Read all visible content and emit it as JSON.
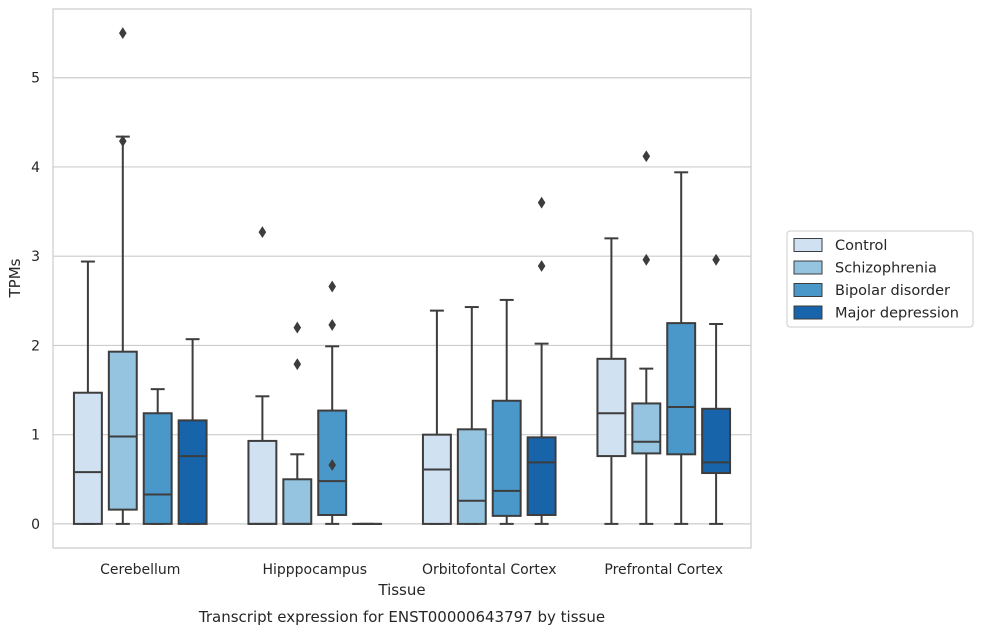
{
  "chart_data": {
    "type": "box",
    "caption": "Transcript expression for ENST00000643797 by tissue",
    "xlabel": "Tissue",
    "ylabel": "TPMs",
    "categories": [
      "Cerebellum",
      "Hipppocampus",
      "Orbitofontal Cortex",
      "Prefrontal Cortex"
    ],
    "yticks": [
      "0",
      "1",
      "2",
      "3",
      "4",
      "5"
    ],
    "ylim": [
      -0.27,
      5.77
    ],
    "grid": "horizontal",
    "legend_position": "right",
    "series": [
      {
        "name": "Control",
        "color": "#d0e1f2",
        "boxes": [
          {
            "whisker_low": 0,
            "q1": 0,
            "median": 0.58,
            "q3": 1.47,
            "whisker_high": 2.94,
            "outliers": []
          },
          {
            "whisker_low": 0,
            "q1": 0,
            "median": 0,
            "q3": 0.93,
            "whisker_high": 1.43,
            "outliers": [
              3.27
            ]
          },
          {
            "whisker_low": 0,
            "q1": 0,
            "median": 0.61,
            "q3": 1.0,
            "whisker_high": 2.39,
            "outliers": []
          },
          {
            "whisker_low": 0,
            "q1": 0.76,
            "median": 1.24,
            "q3": 1.85,
            "whisker_high": 3.2,
            "outliers": []
          }
        ]
      },
      {
        "name": "Schizophrenia",
        "color": "#94c4df",
        "boxes": [
          {
            "whisker_low": 0,
            "q1": 0.16,
            "median": 0.98,
            "q3": 1.93,
            "whisker_high": 4.34,
            "outliers": [
              4.29,
              5.5
            ]
          },
          {
            "whisker_low": 0,
            "q1": 0,
            "median": 0,
            "q3": 0.5,
            "whisker_high": 0.78,
            "outliers": [
              1.79,
              2.2
            ]
          },
          {
            "whisker_low": 0,
            "q1": 0,
            "median": 0.26,
            "q3": 1.06,
            "whisker_high": 2.43,
            "outliers": []
          },
          {
            "whisker_low": 0,
            "q1": 0.79,
            "median": 0.92,
            "q3": 1.35,
            "whisker_high": 1.74,
            "outliers": [
              2.96,
              4.12
            ]
          }
        ]
      },
      {
        "name": "Bipolar disorder",
        "color": "#4a98c9",
        "boxes": [
          {
            "whisker_low": 0,
            "q1": 0,
            "median": 0.33,
            "q3": 1.24,
            "whisker_high": 1.51,
            "outliers": []
          },
          {
            "whisker_low": 0,
            "q1": 0.1,
            "median": 0.48,
            "q3": 1.27,
            "whisker_high": 1.99,
            "outliers": [
              0.66,
              2.23,
              2.66
            ]
          },
          {
            "whisker_low": 0,
            "q1": 0.09,
            "median": 0.37,
            "q3": 1.38,
            "whisker_high": 2.51,
            "outliers": []
          },
          {
            "whisker_low": 0,
            "q1": 0.78,
            "median": 1.31,
            "q3": 2.25,
            "whisker_high": 3.94,
            "outliers": []
          }
        ]
      },
      {
        "name": "Major depression",
        "color": "#1764ab",
        "boxes": [
          {
            "whisker_low": 0,
            "q1": 0,
            "median": 0.76,
            "q3": 1.16,
            "whisker_high": 2.07,
            "outliers": []
          },
          {
            "whisker_low": 0,
            "q1": 0,
            "median": 0,
            "q3": 0,
            "whisker_high": 0,
            "outliers": []
          },
          {
            "whisker_low": 0,
            "q1": 0.1,
            "median": 0.69,
            "q3": 0.97,
            "whisker_high": 2.02,
            "outliers": [
              2.89,
              3.6
            ]
          },
          {
            "whisker_low": 0,
            "q1": 0.57,
            "median": 0.69,
            "q3": 1.29,
            "whisker_high": 2.24,
            "outliers": [
              2.96
            ]
          }
        ]
      }
    ]
  }
}
